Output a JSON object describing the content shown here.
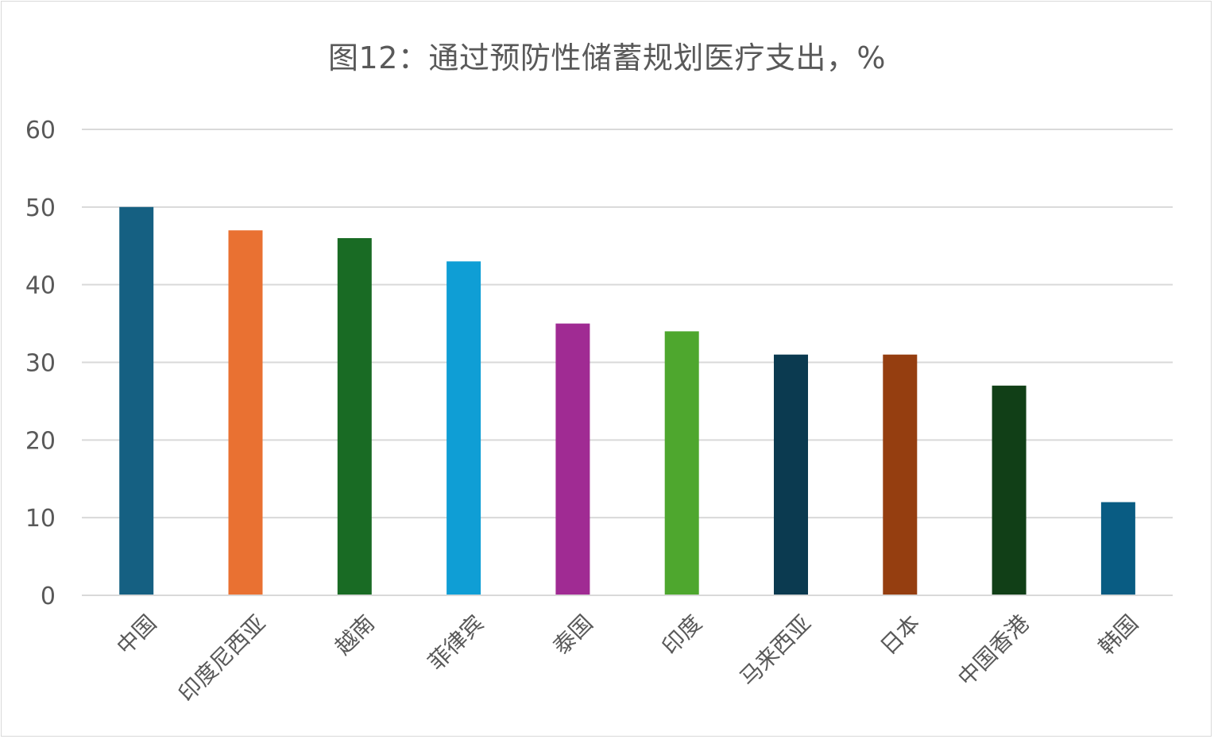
{
  "chart_data": {
    "type": "bar",
    "title": "图12：通过预防性储蓄规划医疗支出，%",
    "xlabel": "",
    "ylabel": "",
    "ylim": [
      0,
      60
    ],
    "yticks": [
      "0",
      "10",
      "20",
      "30",
      "40",
      "50",
      "60"
    ],
    "grid": true,
    "legend": "none",
    "categories": [
      "中国",
      "印度尼西亚",
      "越南",
      "菲律宾",
      "泰国",
      "印度",
      "马来西亚",
      "日本",
      "中国香港",
      "韩国"
    ],
    "values": [
      50,
      47,
      46,
      43,
      35,
      34,
      31,
      31,
      27,
      12
    ],
    "colors": [
      "#156082",
      "#e97132",
      "#196b24",
      "#0f9ed5",
      "#a02b93",
      "#4ea72e",
      "#0b3a50",
      "#953e10",
      "#113f17",
      "#095c83"
    ],
    "gridline_color": "#d9d9d9",
    "axis_color": "#d9d9d9"
  }
}
